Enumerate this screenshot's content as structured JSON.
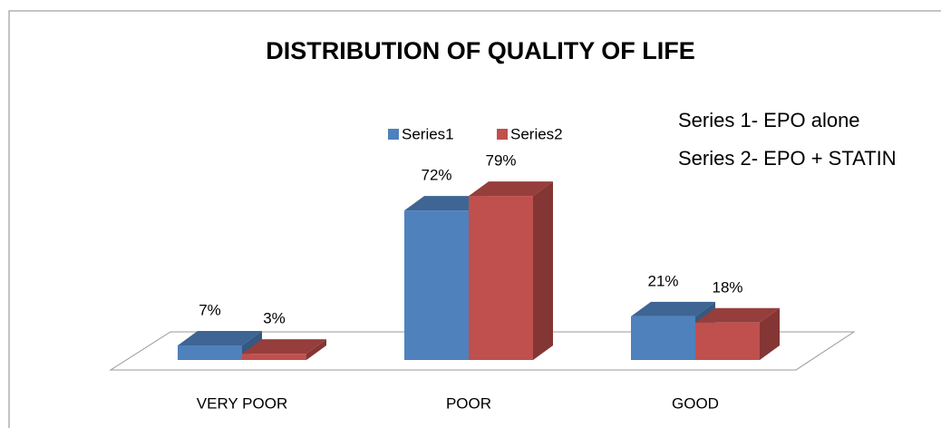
{
  "chart_data": {
    "type": "bar",
    "title": "DISTRIBUTION OF QUALITY OF LIFE",
    "categories": [
      "VERY POOR",
      "POOR",
      "GOOD"
    ],
    "series": [
      {
        "name": "Series1",
        "color": "#4f81bd",
        "values": [
          7,
          72,
          21
        ],
        "value_labels": [
          "7%",
          "72%",
          "21%"
        ]
      },
      {
        "name": "Series2",
        "color": "#c0504d",
        "values": [
          3,
          79,
          18
        ],
        "value_labels": [
          "3%",
          "79%",
          "18%"
        ]
      }
    ],
    "annotations": [
      "Series 1- EPO alone",
      "Series 2- EPO + STATIN"
    ],
    "legend": "top"
  }
}
